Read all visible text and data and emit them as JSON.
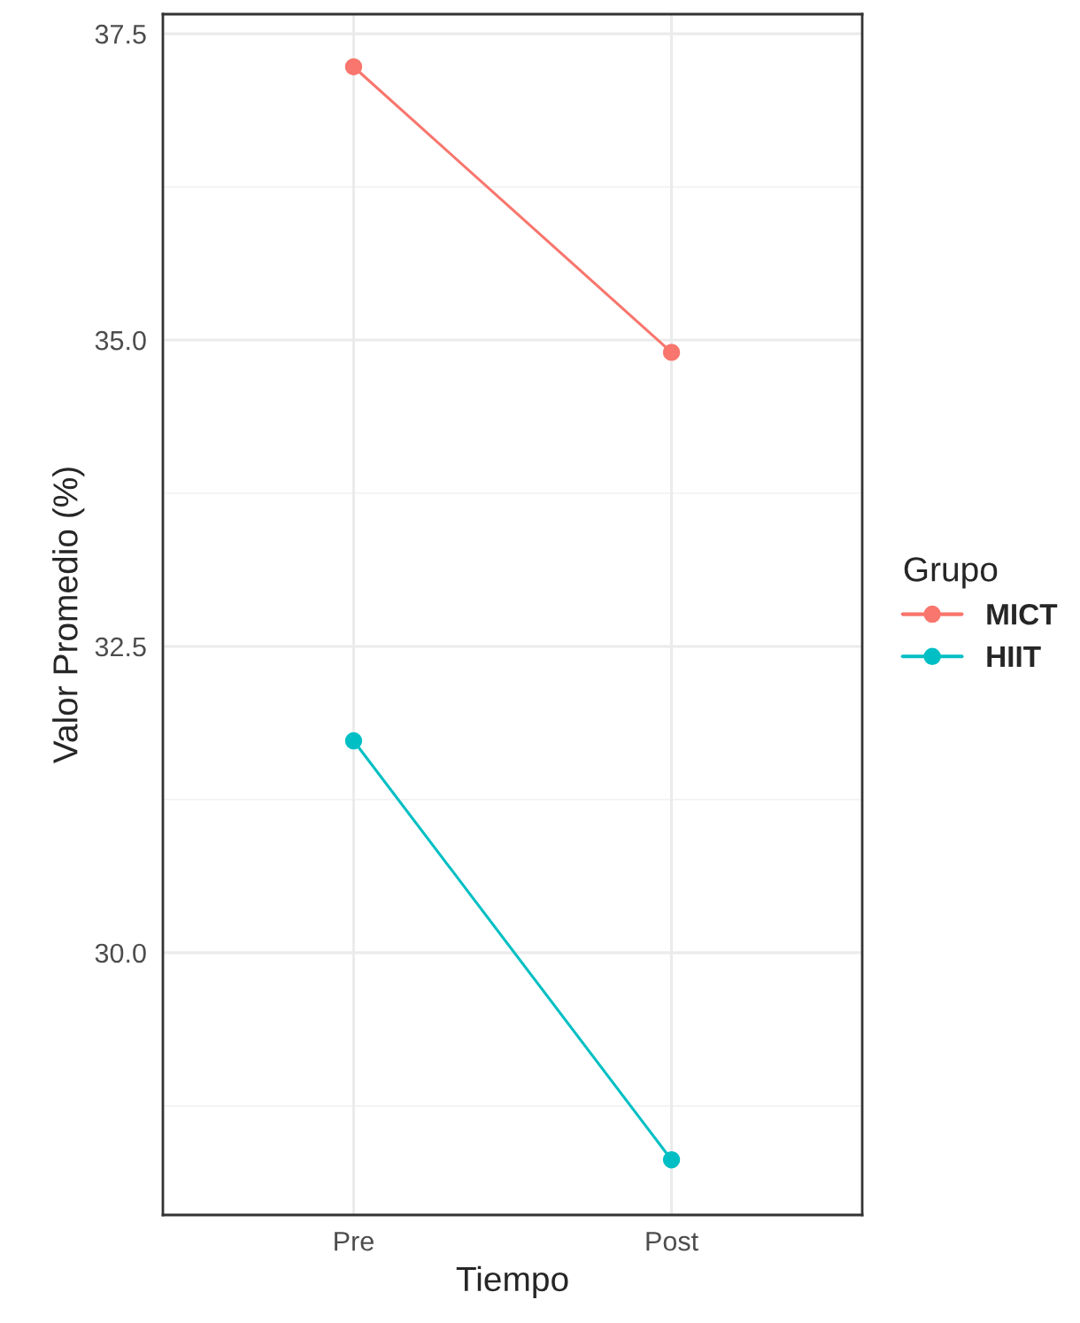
{
  "chart_data": {
    "type": "line",
    "xlabel": "Tiempo",
    "ylabel": "Valor Promedio (%)",
    "legend_title": "Grupo",
    "categories": [
      "Pre",
      "Post"
    ],
    "series": [
      {
        "name": "MICT",
        "color": "#f8766d",
        "values": [
          37.23,
          34.9
        ]
      },
      {
        "name": "HIIT",
        "color": "#00bfc4",
        "values": [
          31.73,
          28.31
        ]
      }
    ],
    "ylim": [
      27.86,
      37.66
    ],
    "yticks": [
      {
        "value": 30,
        "label": "30.0"
      },
      {
        "value": 32.5,
        "label": "32.5"
      },
      {
        "value": 35,
        "label": "35.0"
      },
      {
        "value": 37.5,
        "label": "37.5"
      }
    ],
    "grid": true,
    "legend": "right",
    "marker": "circle",
    "line_style": "solid"
  }
}
